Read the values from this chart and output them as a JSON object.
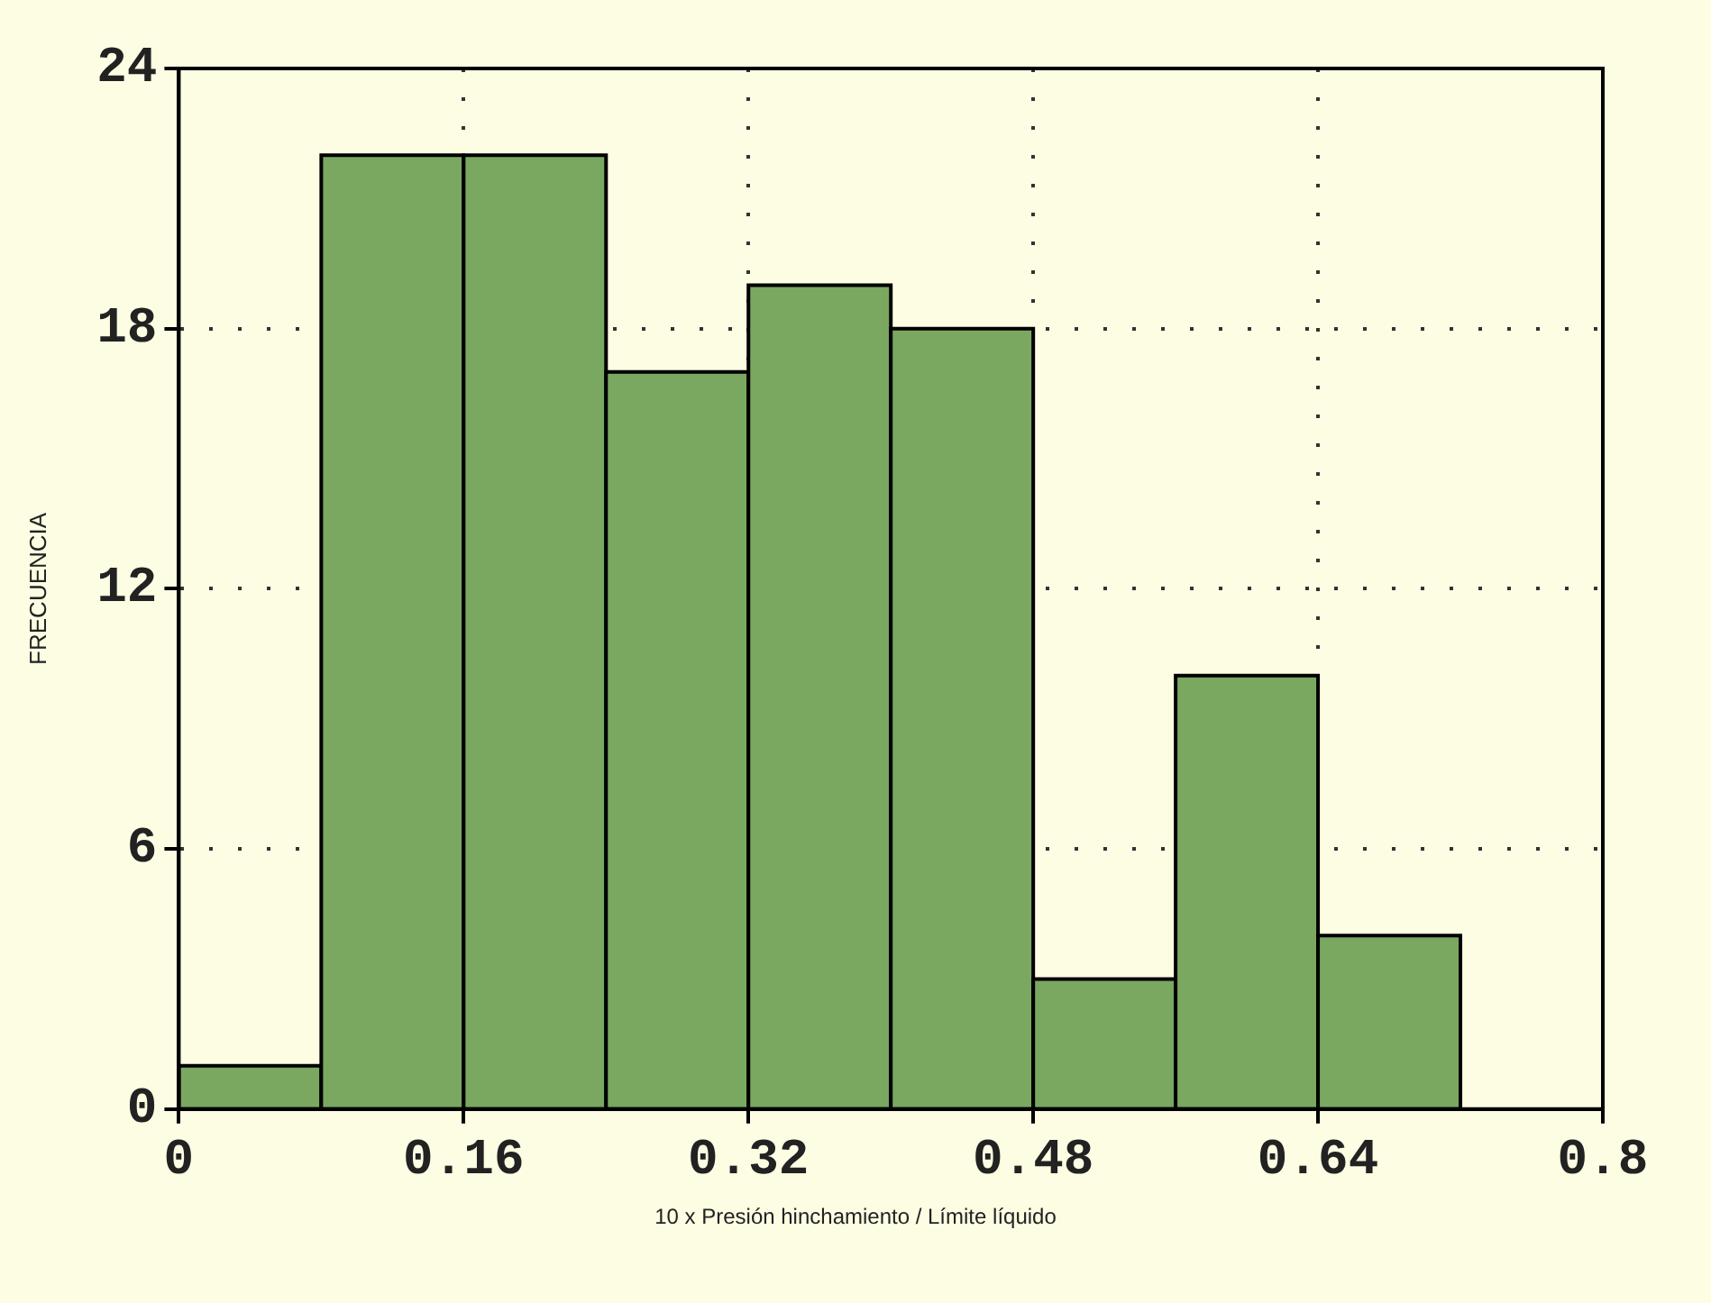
{
  "chart_data": {
    "type": "histogram",
    "xlabel": "10 x Presión hinchamiento / Límite líquido",
    "ylabel": "FRECUENCIA",
    "bins": [
      0,
      0.08,
      0.16,
      0.24,
      0.32,
      0.4,
      0.48,
      0.56,
      0.64,
      0.72
    ],
    "values": [
      1,
      22,
      22,
      17,
      19,
      18,
      3,
      10,
      4
    ],
    "color": "#7aa860",
    "xlim": [
      0,
      0.8
    ],
    "xticks": [
      0,
      0.16,
      0.32,
      0.48,
      0.64,
      0.8
    ],
    "ylim": [
      0,
      24
    ],
    "yticks": [
      0,
      6,
      12,
      18,
      24
    ],
    "grid": true
  }
}
